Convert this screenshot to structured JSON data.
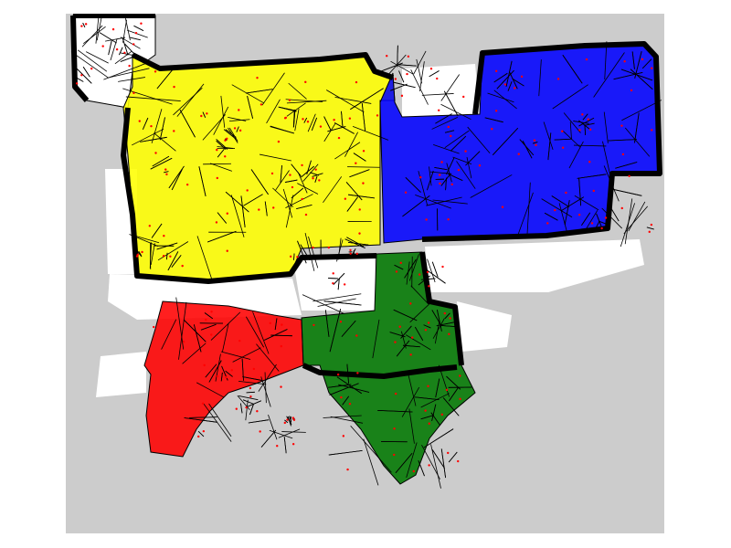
{
  "map": {
    "background_color": "#cccccc",
    "free_space_color": "#ffffff",
    "wall_color": "#000000",
    "cell_edge_color": "#000000",
    "seed_point_color": "#ff0000",
    "region_opacity": 0.88,
    "regions": [
      {
        "id": "yellow",
        "color": "#ffff00"
      },
      {
        "id": "blue",
        "color": "#0000ff"
      },
      {
        "id": "red",
        "color": "#ff0000"
      },
      {
        "id": "green",
        "color": "#007700"
      },
      {
        "id": "unassigned-corner",
        "color": "#ffffff"
      }
    ]
  }
}
